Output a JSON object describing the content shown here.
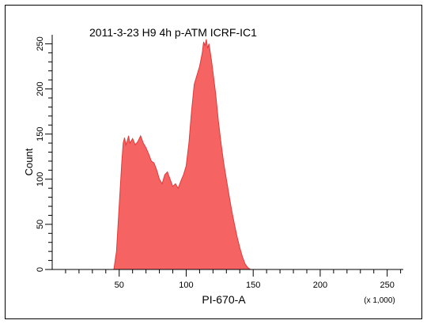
{
  "colors": {
    "fill": "#f56363",
    "stroke": "#e03a3a",
    "axis": "#000000",
    "frame": "#000000"
  },
  "chart_data": {
    "type": "area",
    "title": "2011-3-23 H9 4h p-ATM ICRF-IC1",
    "xlabel": "PI-670-A",
    "ylabel": "Count",
    "x_unit_note": "(x 1,000)",
    "xlim": [
      0,
      262
    ],
    "ylim": [
      0,
      260
    ],
    "x_ticks": [
      50,
      100,
      150,
      200,
      250
    ],
    "y_ticks": [
      0,
      50,
      100,
      150,
      200,
      250
    ],
    "grid": false,
    "series": [
      {
        "x": [
          46,
          48,
          49,
          50,
          51,
          52,
          53,
          54,
          55,
          56,
          57,
          58,
          60,
          62,
          64,
          66,
          68,
          70,
          72,
          74,
          76,
          78,
          80,
          82,
          84,
          86,
          88,
          90,
          92,
          94,
          96,
          98,
          100,
          102,
          104,
          106,
          108,
          110,
          112,
          113,
          114,
          115,
          116,
          117,
          118,
          119,
          120,
          122,
          124,
          126,
          128,
          130,
          132,
          134,
          136,
          138,
          140,
          142,
          144,
          146,
          148
        ],
        "y": [
          0,
          20,
          45,
          70,
          95,
          120,
          140,
          146,
          138,
          142,
          148,
          140,
          145,
          138,
          142,
          148,
          140,
          135,
          128,
          120,
          118,
          110,
          100,
          95,
          105,
          108,
          100,
          92,
          95,
          90,
          98,
          105,
          115,
          140,
          175,
          205,
          215,
          225,
          240,
          252,
          248,
          255,
          245,
          250,
          240,
          230,
          218,
          195,
          165,
          140,
          118,
          100,
          82,
          65,
          50,
          36,
          24,
          14,
          6,
          2,
          0
        ]
      }
    ]
  }
}
